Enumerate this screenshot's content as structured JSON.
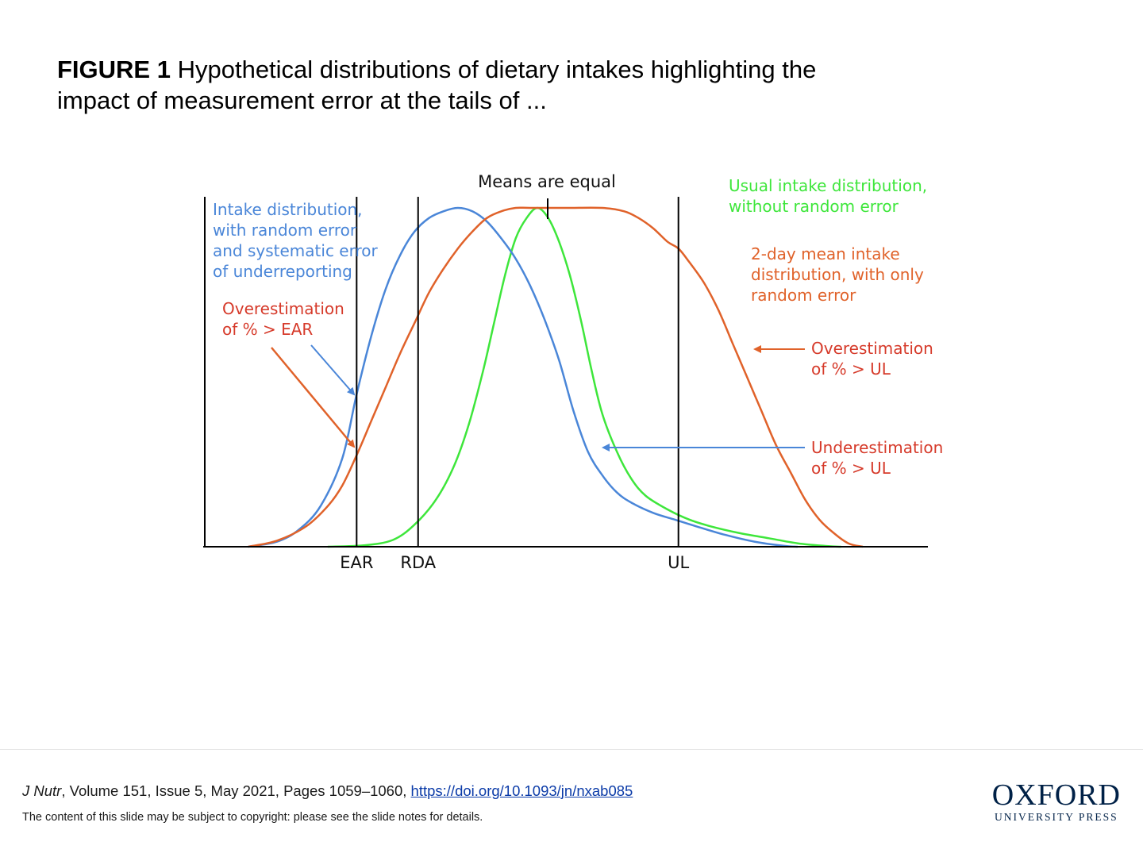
{
  "figure": {
    "label": "FIGURE 1",
    "caption": "Hypothetical distributions of dietary intakes highlighting the impact of measurement error at the tails of ..."
  },
  "chart_data": {
    "type": "line",
    "title": "",
    "xlabel": "",
    "ylabel": "",
    "xlim": [
      0,
      100
    ],
    "ylim": [
      0,
      1
    ],
    "grid": false,
    "x_ticks": [
      {
        "label": "EAR",
        "x": 21
      },
      {
        "label": "RDA",
        "x": 29.5
      },
      {
        "label": "UL",
        "x": 65.5
      }
    ],
    "series": [
      {
        "name": "Intake distribution, with random error and systematic error of underreporting",
        "color": "#4a86d8",
        "points": [
          [
            6,
            0
          ],
          [
            10,
            0.015
          ],
          [
            13,
            0.05
          ],
          [
            16,
            0.12
          ],
          [
            19,
            0.26
          ],
          [
            21,
            0.45
          ],
          [
            23,
            0.62
          ],
          [
            25,
            0.76
          ],
          [
            27,
            0.86
          ],
          [
            29,
            0.93
          ],
          [
            31,
            0.97
          ],
          [
            33,
            0.99
          ],
          [
            35,
            1.0
          ],
          [
            37,
            0.99
          ],
          [
            39,
            0.96
          ],
          [
            41,
            0.91
          ],
          [
            43,
            0.85
          ],
          [
            45,
            0.77
          ],
          [
            47,
            0.67
          ],
          [
            49,
            0.55
          ],
          [
            51,
            0.4
          ],
          [
            53,
            0.28
          ],
          [
            55,
            0.21
          ],
          [
            57,
            0.16
          ],
          [
            59,
            0.13
          ],
          [
            62,
            0.1
          ],
          [
            65,
            0.08
          ],
          [
            68,
            0.06
          ],
          [
            72,
            0.035
          ],
          [
            76,
            0.015
          ],
          [
            80,
            0.003
          ],
          [
            82,
            0
          ]
        ]
      },
      {
        "name": "Usual intake distribution, without random error",
        "color": "#3ee63b",
        "points": [
          [
            17,
            0
          ],
          [
            22,
            0.004
          ],
          [
            26,
            0.02
          ],
          [
            29,
            0.065
          ],
          [
            32,
            0.14
          ],
          [
            34.5,
            0.24
          ],
          [
            36.5,
            0.36
          ],
          [
            38.5,
            0.52
          ],
          [
            40,
            0.66
          ],
          [
            41.5,
            0.8
          ],
          [
            43,
            0.91
          ],
          [
            44.5,
            0.97
          ],
          [
            46,
            1.0
          ],
          [
            47.5,
            0.97
          ],
          [
            49,
            0.9
          ],
          [
            50.5,
            0.8
          ],
          [
            52,
            0.67
          ],
          [
            53.5,
            0.52
          ],
          [
            55,
            0.39
          ],
          [
            57,
            0.28
          ],
          [
            59,
            0.2
          ],
          [
            61,
            0.15
          ],
          [
            64,
            0.11
          ],
          [
            67,
            0.08
          ],
          [
            70,
            0.06
          ],
          [
            74,
            0.04
          ],
          [
            78,
            0.025
          ],
          [
            82,
            0.01
          ],
          [
            86,
            0.002
          ],
          [
            88,
            0
          ]
        ]
      },
      {
        "name": "2-day mean intake distribution, with only random error",
        "color": "#e0622a",
        "points": [
          [
            6,
            0
          ],
          [
            10,
            0.018
          ],
          [
            14,
            0.06
          ],
          [
            17,
            0.12
          ],
          [
            19,
            0.18
          ],
          [
            21,
            0.27
          ],
          [
            23,
            0.37
          ],
          [
            25,
            0.47
          ],
          [
            27,
            0.57
          ],
          [
            29,
            0.66
          ],
          [
            31,
            0.75
          ],
          [
            33,
            0.82
          ],
          [
            35,
            0.88
          ],
          [
            37,
            0.93
          ],
          [
            39,
            0.97
          ],
          [
            41,
            0.99
          ],
          [
            43,
            1.0
          ],
          [
            45,
            1.0
          ],
          [
            50,
            1.0
          ],
          [
            55,
            1.0
          ],
          [
            58,
            0.99
          ],
          [
            60,
            0.97
          ],
          [
            62,
            0.94
          ],
          [
            64,
            0.9
          ],
          [
            65.5,
            0.88
          ],
          [
            67,
            0.84
          ],
          [
            69,
            0.78
          ],
          [
            71,
            0.7
          ],
          [
            73,
            0.6
          ],
          [
            75,
            0.5
          ],
          [
            77,
            0.4
          ],
          [
            79,
            0.3
          ],
          [
            81,
            0.22
          ],
          [
            83,
            0.14
          ],
          [
            85,
            0.08
          ],
          [
            87,
            0.04
          ],
          [
            89,
            0.01
          ],
          [
            91,
            0
          ]
        ]
      }
    ],
    "annotations": [
      {
        "text": "Means are equal"
      },
      {
        "lines": [
          "Intake distribution,",
          "with random error",
          "and systematic error",
          "of underreporting"
        ],
        "color": "#4a86d8"
      },
      {
        "lines": [
          "Usual intake distribution,",
          "without random error"
        ],
        "color": "#3ee63b"
      },
      {
        "lines": [
          "2-day mean intake",
          "distribution, with only",
          "random error"
        ],
        "color": "#e0622a"
      },
      {
        "lines": [
          "Overestimation",
          "of % > EAR"
        ],
        "color": "#d63a2a"
      },
      {
        "lines": [
          "Overestimation",
          "of % > UL"
        ],
        "color": "#d63a2a"
      },
      {
        "lines": [
          "Underestimation",
          "of % > UL"
        ],
        "color": "#d63a2a"
      }
    ]
  },
  "footer": {
    "journal": "J Nutr",
    "citation": ", Volume 151, Issue 5, May 2021, Pages 1059–1060, ",
    "doi": "https://doi.org/10.1093/jn/nxab085",
    "copyright": "The content of this slide may be subject to copyright: please see the slide notes for details.",
    "logo_main": "OXFORD",
    "logo_sub": "UNIVERSITY PRESS"
  }
}
